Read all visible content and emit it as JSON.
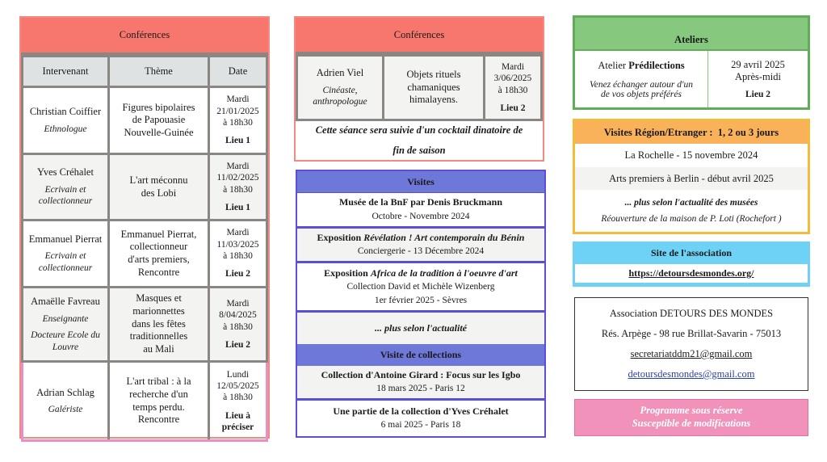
{
  "left": {
    "title": "Conférences",
    "headers": [
      "Intervenant",
      "Thème",
      "Date"
    ],
    "rows": [
      {
        "name": "Christian Coiffier",
        "roles": [
          "Ethnologue"
        ],
        "theme": [
          "Figures bipolaires",
          "de Papouasie",
          "Nouvelle-Guinée"
        ],
        "date": [
          "Mardi",
          "21/01/2025",
          "à 18h30"
        ],
        "lieu": "Lieu 1"
      },
      {
        "name": "Yves Créhalet",
        "roles": [
          "Ecrivain et collectionneur"
        ],
        "theme": [
          "L'art méconnu",
          "des Lobi"
        ],
        "date": [
          "Mardi",
          "11/02/2025",
          "à 18h30"
        ],
        "lieu": "Lieu 1"
      },
      {
        "name": "Emmanuel Pierrat",
        "roles": [
          "Ecrivain et collectionneur"
        ],
        "theme": [
          "Emmanuel Pierrat,",
          "collectionneur",
          "d'arts premiers,",
          "Rencontre"
        ],
        "date": [
          "Mardi",
          "11/03/2025",
          "à 18h30"
        ],
        "lieu": "Lieu 2"
      },
      {
        "name": "Amaëlle Favreau",
        "roles": [
          "Enseignante",
          "Docteure Ecole du Louvre"
        ],
        "theme": [
          "Masques et",
          "marionnettes",
          "dans les fêtes",
          "traditionnelles",
          "au Mali"
        ],
        "date": [
          "Mardi",
          "8/04/2025",
          "à 18h30"
        ],
        "lieu": "Lieu 2"
      },
      {
        "name": "Adrian Schlag",
        "roles": [
          "Galériste"
        ],
        "theme": [
          "L'art tribal : à la",
          "recherche d'un",
          "temps perdu.",
          "Rencontre"
        ],
        "date": [
          "Lundi",
          "12/05/2025",
          "à 18h30"
        ],
        "lieu": "Lieu à préciser"
      }
    ]
  },
  "mid_conf": {
    "title": "Conférences",
    "name": "Adrien Viel",
    "role": "Cinéaste, anthropologue",
    "theme": "Objets rituels chamaniques himalayens.",
    "date": [
      "Mardi",
      "3/06/2025",
      "à 18h30"
    ],
    "lieu": "Lieu 2",
    "note": "Cette séance sera suivie d'un cocktail dinatoire de fin de saison"
  },
  "visites": {
    "title": "Visites",
    "items": [
      {
        "title": "Musée de la BnF par Denis Bruckmann",
        "lines": [
          "Octobre - Novembre 2024"
        ]
      },
      {
        "prefix": "Exposition ",
        "title": "Révélation ! Art contemporain du Bénin",
        "lines": [
          "Conciergerie - 13 Décembre 2024"
        ]
      },
      {
        "prefix": "Exposition ",
        "title": "Africa de la tradition à l'oeuvre d'art",
        "lines": [
          "Collection David et Michèle Wizenberg",
          "1er février 2025 - Sèvres"
        ]
      }
    ],
    "more": "... plus selon l'actualité",
    "collections_title": "Visite de collections",
    "collections": [
      {
        "title": "Collection d'Antoine Girard : Focus sur les Igbo",
        "line": "18 mars 2025 - Paris 12"
      },
      {
        "title": "Une partie de la collection d'Yves Créhalet",
        "line": "6 mai 2025 - Paris 18"
      }
    ]
  },
  "ateliers": {
    "title": "Ateliers",
    "prefix": "Atelier ",
    "name": "Prédilections",
    "desc": "Venez échanger autour d'un de vos objets préférés",
    "date": "29 avril 2025",
    "time": "Après-midi",
    "lieu": "Lieu 2"
  },
  "region": {
    "title": "Visites Région/Etranger :  1, 2 ou 3 jours",
    "items": [
      "La Rochelle - 15 novembre 2024",
      "Arts premiers à Berlin - début avril 2025"
    ],
    "more": "... plus selon l'actualité des musées",
    "extra": "Réouverture de la maison de P. Loti (Rochefort )"
  },
  "site": {
    "title": "Site de l'association",
    "url": "https://detoursdesmondes.org/"
  },
  "contact": {
    "name": "Association DETOURS DES MONDES",
    "address": "Rés. Arpège - 98 rue Brillat-Savarin - 75013",
    "email1": "secretariatddm21@gmail.com",
    "email2": "detoursdesmondes@gmail.com"
  },
  "notice": {
    "line1": "Programme sous réserve",
    "line2": "Susceptible de modifications"
  },
  "colors": {
    "conf": "#f7776e",
    "visites": "#6e78d8",
    "ateliers": "#86c97e",
    "region": "#f9b25a",
    "site": "#6dd2f5",
    "notice": "#f192bb"
  }
}
